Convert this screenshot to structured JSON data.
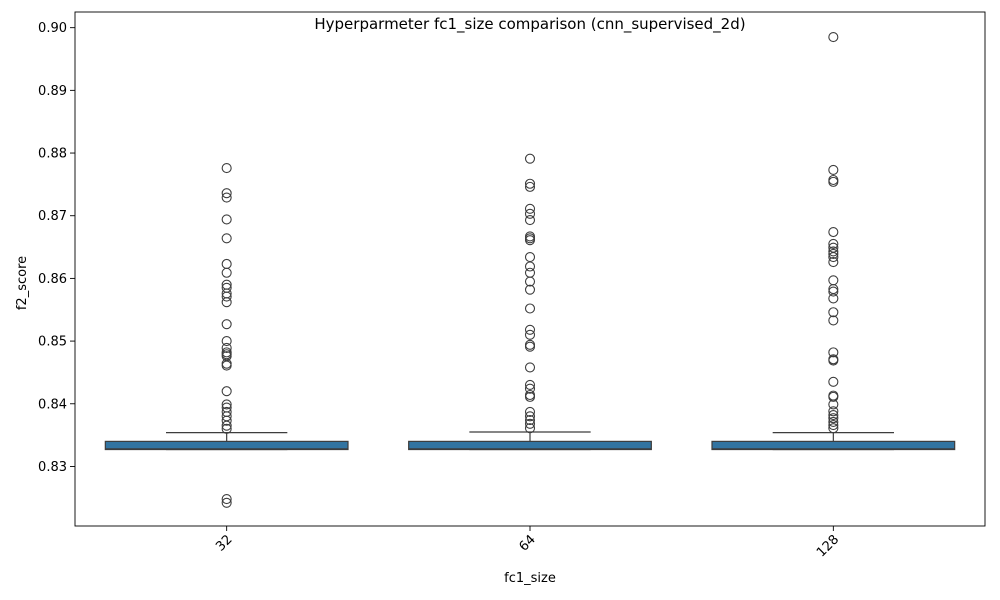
{
  "chart_data": {
    "type": "box",
    "title": "Hyperparmeter fc1_size comparison (cnn_supervised_2d)",
    "xlabel": "fc1_size",
    "ylabel": "f2_score",
    "ylim": [
      0.8205,
      0.9025
    ],
    "y_ticks": [
      "0.83",
      "0.84",
      "0.85",
      "0.86",
      "0.87",
      "0.88",
      "0.89",
      "0.90"
    ],
    "y_tick_values": [
      0.83,
      0.84,
      0.85,
      0.86,
      0.87,
      0.88,
      0.89,
      0.9
    ],
    "x_tick_rotation_deg": -45,
    "grid": false,
    "box_color": "#3274a1",
    "categories": [
      "32",
      "64",
      "128"
    ],
    "boxes": [
      {
        "category": "32",
        "whisker_low": 0.8327,
        "q1": 0.8327,
        "median": 0.8328,
        "q3": 0.834,
        "whisker_high": 0.8354,
        "outliers": [
          0.8776,
          0.8736,
          0.8729,
          0.8694,
          0.8664,
          0.8623,
          0.8609,
          0.859,
          0.8585,
          0.8576,
          0.8571,
          0.8562,
          0.8527,
          0.85,
          0.8489,
          0.8482,
          0.8479,
          0.8476,
          0.8464,
          0.8461,
          0.842,
          0.8399,
          0.8394,
          0.8387,
          0.838,
          0.8373,
          0.8365,
          0.836,
          0.8248,
          0.8242
        ]
      },
      {
        "category": "64",
        "whisker_low": 0.8327,
        "q1": 0.8327,
        "median": 0.8328,
        "q3": 0.834,
        "whisker_high": 0.8355,
        "outliers": [
          0.8791,
          0.8751,
          0.8746,
          0.8711,
          0.8703,
          0.8693,
          0.8667,
          0.8664,
          0.8661,
          0.8634,
          0.8619,
          0.8609,
          0.8595,
          0.8582,
          0.8552,
          0.8518,
          0.851,
          0.8494,
          0.8491,
          0.8458,
          0.843,
          0.8424,
          0.8414,
          0.8411,
          0.8387,
          0.838,
          0.8374,
          0.8368,
          0.8361
        ]
      },
      {
        "category": "128",
        "whisker_low": 0.8327,
        "q1": 0.8327,
        "median": 0.8328,
        "q3": 0.834,
        "whisker_high": 0.8354,
        "outliers": [
          0.8985,
          0.8773,
          0.8757,
          0.8754,
          0.8674,
          0.8655,
          0.8649,
          0.8643,
          0.8639,
          0.8634,
          0.8626,
          0.8597,
          0.8583,
          0.8579,
          0.8568,
          0.8546,
          0.8533,
          0.8482,
          0.8471,
          0.8469,
          0.8435,
          0.8413,
          0.8411,
          0.8399,
          0.8388,
          0.8382,
          0.8377,
          0.8371,
          0.8366,
          0.8361
        ]
      }
    ]
  }
}
